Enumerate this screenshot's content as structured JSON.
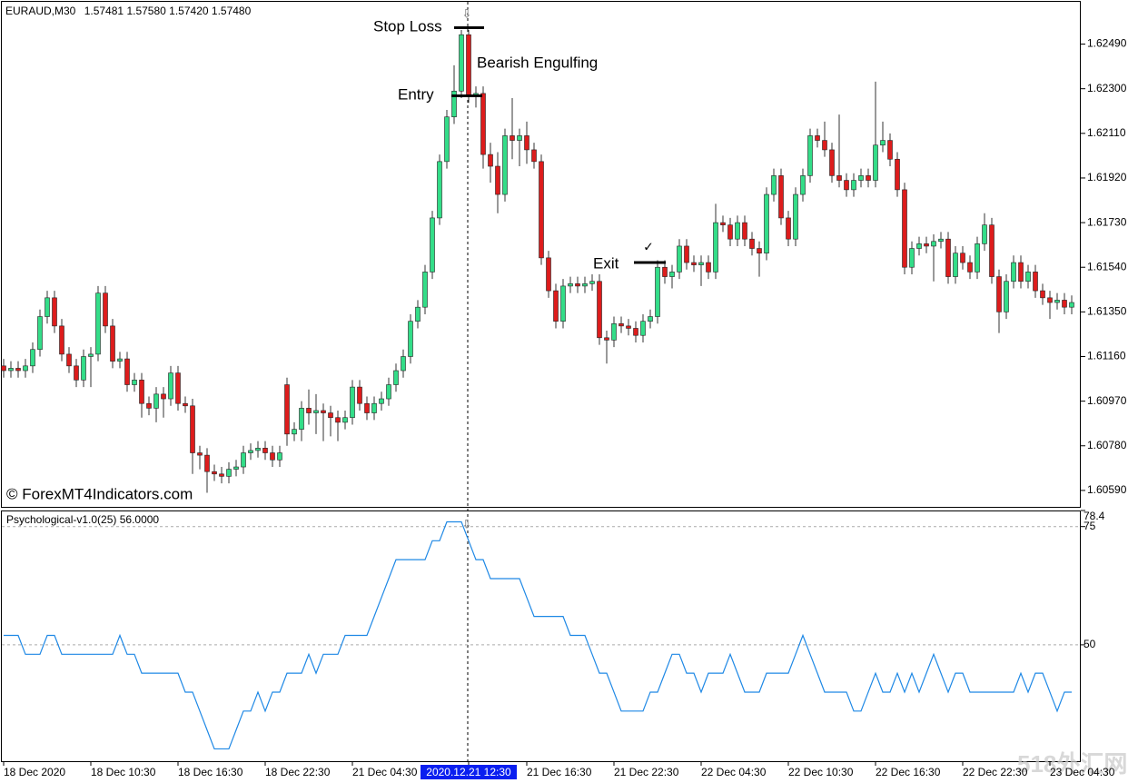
{
  "header": {
    "symbol": "EURAUD,M30",
    "ohlc": [
      "1.57481",
      "1.57580",
      "1.57420",
      "1.57480"
    ]
  },
  "watermarks": [
    "© ForexMT4Indicators.com",
    "518外汇网"
  ],
  "chart_data": [
    {
      "type": "candlestick",
      "categories": [
        "18 Dec 2020",
        null,
        null,
        null,
        null,
        null,
        null,
        null,
        null,
        null,
        null,
        null,
        "18 Dec 10:30",
        null,
        null,
        null,
        null,
        null,
        null,
        null,
        null,
        null,
        null,
        null,
        "18 Dec 16:30",
        null,
        null,
        null,
        null,
        null,
        null,
        null,
        null,
        null,
        null,
        null,
        "18 Dec 22:30",
        null,
        null,
        null,
        null,
        null,
        null,
        null,
        null,
        null,
        null,
        null,
        "21 Dec 04:30",
        null,
        null,
        null,
        null,
        null,
        null,
        null,
        null,
        null,
        null,
        null,
        null,
        null,
        null,
        null,
        "2020.12.21 12:30",
        null,
        null,
        null,
        null,
        null,
        null,
        null,
        "21 Dec 16:30",
        null,
        null,
        null,
        null,
        null,
        null,
        null,
        null,
        null,
        null,
        null,
        "21 Dec 22:30",
        null,
        null,
        null,
        null,
        null,
        null,
        null,
        null,
        null,
        null,
        null,
        "22 Dec 04:30",
        null,
        null,
        null,
        null,
        null,
        null,
        null,
        null,
        null,
        null,
        null,
        "22 Dec 10:30",
        null,
        null,
        null,
        null,
        null,
        null,
        null,
        null,
        null,
        null,
        null,
        "22 Dec 16:30",
        null,
        null,
        null,
        null,
        null,
        null,
        null,
        null,
        null,
        null,
        null,
        "22 Dec 22:30",
        null,
        null,
        null,
        null,
        null,
        null,
        null,
        null,
        null,
        null,
        null,
        "23 Dec 04:30",
        null,
        null,
        null
      ],
      "open": [
        1.6112,
        1.611,
        1.6111,
        1.611,
        1.6112,
        1.6119,
        1.6133,
        1.6141,
        1.6129,
        1.6117,
        1.6112,
        1.6106,
        1.6116,
        1.6117,
        1.6143,
        1.6129,
        1.6114,
        1.6115,
        1.6104,
        1.6106,
        1.6096,
        1.6094,
        1.61,
        1.6098,
        1.6109,
        1.6096,
        1.6095,
        1.6075,
        1.6074,
        1.6067,
        1.6066,
        1.6065,
        1.6068,
        1.6069,
        1.6075,
        1.6076,
        1.6077,
        1.6075,
        1.6072,
        1.6104,
        1.6083,
        1.6085,
        1.6094,
        1.6092,
        1.6093,
        1.6092,
        1.609,
        1.6088,
        1.609,
        1.6103,
        1.6096,
        1.6092,
        1.6096,
        1.6098,
        1.6104,
        1.611,
        1.6116,
        1.6131,
        1.6137,
        1.6152,
        1.6175,
        1.6199,
        1.6218,
        1.6229,
        1.6253,
        1.6227,
        1.6228,
        1.6202,
        1.6197,
        1.6185,
        1.621,
        1.6208,
        1.621,
        1.6204,
        1.6199,
        1.6158,
        1.6144,
        1.6131,
        1.6146,
        1.6147,
        1.6146,
        1.6147,
        1.6148,
        1.6124,
        1.6123,
        1.613,
        1.6129,
        1.6128,
        1.6125,
        1.6131,
        1.6133,
        1.6154,
        1.615,
        1.6152,
        1.6163,
        1.6156,
        1.6155,
        1.6156,
        1.6152,
        1.6173,
        1.6172,
        1.6166,
        1.6173,
        1.6166,
        1.6162,
        1.616,
        1.6185,
        1.6193,
        1.6175,
        1.6166,
        1.6185,
        1.6193,
        1.621,
        1.6208,
        1.6204,
        1.6193,
        1.6191,
        1.6187,
        1.6191,
        1.6193,
        1.6191,
        1.6206,
        1.6208,
        1.62,
        1.6187,
        1.6154,
        1.6162,
        1.6164,
        1.6163,
        1.6165,
        1.6166,
        1.615,
        1.616,
        1.6156,
        1.6152,
        1.6164,
        1.6172,
        1.615,
        1.6135,
        1.6148,
        1.6156,
        1.6148,
        1.6152,
        1.6144,
        1.6141,
        1.6139,
        1.614,
        1.6137
      ],
      "high": [
        1.6115,
        1.6114,
        1.6114,
        1.6115,
        1.6122,
        1.6136,
        1.6144,
        1.6144,
        1.6132,
        1.612,
        1.6115,
        1.6119,
        1.612,
        1.6146,
        1.6146,
        1.6132,
        1.6118,
        1.6118,
        1.6109,
        1.6109,
        1.6099,
        1.6103,
        1.6103,
        1.6112,
        1.6112,
        1.6099,
        1.6098,
        1.6078,
        1.6077,
        1.607,
        1.6069,
        1.6071,
        1.6072,
        1.6078,
        1.6079,
        1.608,
        1.608,
        1.6078,
        1.6078,
        1.6107,
        1.6088,
        1.6097,
        1.6102,
        1.61,
        1.6096,
        1.6095,
        1.6093,
        1.6093,
        1.6106,
        1.6106,
        1.6099,
        1.6099,
        1.6101,
        1.6107,
        1.6113,
        1.6119,
        1.6134,
        1.614,
        1.6155,
        1.6178,
        1.6202,
        1.6221,
        1.624,
        1.6255,
        1.6255,
        1.6231,
        1.6231,
        1.6207,
        1.6203,
        1.6213,
        1.6226,
        1.6213,
        1.6216,
        1.6207,
        1.6202,
        1.6161,
        1.6147,
        1.6149,
        1.615,
        1.615,
        1.615,
        1.6151,
        1.6151,
        1.6127,
        1.6133,
        1.6133,
        1.6132,
        1.6131,
        1.6134,
        1.6136,
        1.6157,
        1.6157,
        1.6155,
        1.6166,
        1.6166,
        1.6159,
        1.6159,
        1.6159,
        1.6181,
        1.6176,
        1.6175,
        1.6176,
        1.6176,
        1.6169,
        1.6165,
        1.6188,
        1.6196,
        1.6196,
        1.6178,
        1.6188,
        1.6196,
        1.6213,
        1.6213,
        1.6216,
        1.6207,
        1.6219,
        1.6194,
        1.6194,
        1.6196,
        1.6196,
        1.6233,
        1.6216,
        1.6211,
        1.6203,
        1.619,
        1.6165,
        1.6167,
        1.6167,
        1.6168,
        1.6169,
        1.6169,
        1.6163,
        1.6163,
        1.6159,
        1.6167,
        1.6177,
        1.6175,
        1.6153,
        1.6151,
        1.6159,
        1.6159,
        1.6155,
        1.6155,
        1.6147,
        1.6144,
        1.6143,
        1.6143,
        1.6142
      ],
      "low": [
        1.6107,
        1.6107,
        1.6107,
        1.6107,
        1.6109,
        1.6116,
        1.613,
        1.6126,
        1.6114,
        1.6109,
        1.6103,
        1.6103,
        1.6103,
        1.6114,
        1.6126,
        1.6111,
        1.6111,
        1.6101,
        1.6101,
        1.609,
        1.6091,
        1.6088,
        1.609,
        1.6095,
        1.6093,
        1.6092,
        1.6066,
        1.6068,
        1.6058,
        1.6063,
        1.6062,
        1.6062,
        1.6065,
        1.6066,
        1.6072,
        1.6073,
        1.6072,
        1.6069,
        1.6069,
        1.6078,
        1.608,
        1.608,
        1.6087,
        1.6083,
        1.608,
        1.6082,
        1.608,
        1.6085,
        1.6087,
        1.6093,
        1.6089,
        1.6089,
        1.6093,
        1.6095,
        1.6101,
        1.6107,
        1.6113,
        1.6128,
        1.6134,
        1.6149,
        1.6172,
        1.6196,
        1.6215,
        1.6226,
        1.6224,
        1.6222,
        1.6196,
        1.619,
        1.6177,
        1.6182,
        1.62,
        1.6197,
        1.6198,
        1.6196,
        1.6155,
        1.6141,
        1.6128,
        1.6128,
        1.6143,
        1.6143,
        1.6143,
        1.6144,
        1.6121,
        1.6113,
        1.612,
        1.6126,
        1.6125,
        1.6122,
        1.6122,
        1.6128,
        1.613,
        1.6147,
        1.6145,
        1.6149,
        1.6153,
        1.6152,
        1.6146,
        1.6149,
        1.6149,
        1.6169,
        1.6163,
        1.6163,
        1.6163,
        1.6159,
        1.615,
        1.6157,
        1.6182,
        1.6172,
        1.6163,
        1.6163,
        1.6182,
        1.619,
        1.6205,
        1.6201,
        1.619,
        1.6188,
        1.6184,
        1.6184,
        1.6188,
        1.6188,
        1.6188,
        1.6203,
        1.6197,
        1.6184,
        1.6151,
        1.6151,
        1.6159,
        1.616,
        1.6148,
        1.6162,
        1.6147,
        1.6147,
        1.6153,
        1.6149,
        1.6149,
        1.6161,
        1.6147,
        1.6126,
        1.6132,
        1.6145,
        1.6145,
        1.6145,
        1.6141,
        1.6138,
        1.6132,
        1.6136,
        1.6134,
        1.6134
      ],
      "close": [
        1.611,
        1.6111,
        1.611,
        1.6112,
        1.6119,
        1.6133,
        1.6141,
        1.6129,
        1.6117,
        1.6112,
        1.6106,
        1.6116,
        1.6117,
        1.6143,
        1.6129,
        1.6114,
        1.6115,
        1.6104,
        1.6106,
        1.6096,
        1.6094,
        1.61,
        1.6098,
        1.6109,
        1.6096,
        1.6095,
        1.6075,
        1.6074,
        1.6067,
        1.6066,
        1.6065,
        1.6068,
        1.6069,
        1.6075,
        1.6076,
        1.6077,
        1.6075,
        1.6072,
        1.6075,
        1.6083,
        1.6085,
        1.6094,
        1.6092,
        1.6093,
        1.6092,
        1.609,
        1.6088,
        1.609,
        1.6103,
        1.6096,
        1.6092,
        1.6096,
        1.6098,
        1.6104,
        1.611,
        1.6116,
        1.6131,
        1.6137,
        1.6152,
        1.6175,
        1.6199,
        1.6218,
        1.6229,
        1.6253,
        1.6227,
        1.6228,
        1.6202,
        1.6197,
        1.6185,
        1.621,
        1.6208,
        1.621,
        1.6204,
        1.6199,
        1.6158,
        1.6144,
        1.6131,
        1.6146,
        1.6147,
        1.6146,
        1.6147,
        1.6148,
        1.6124,
        1.6123,
        1.613,
        1.6129,
        1.6128,
        1.6125,
        1.6131,
        1.6133,
        1.6154,
        1.615,
        1.6152,
        1.6163,
        1.6156,
        1.6155,
        1.6156,
        1.6152,
        1.6173,
        1.6172,
        1.6166,
        1.6173,
        1.6166,
        1.6162,
        1.616,
        1.6185,
        1.6193,
        1.6175,
        1.6166,
        1.6185,
        1.6193,
        1.621,
        1.6208,
        1.6204,
        1.6193,
        1.6191,
        1.6187,
        1.6191,
        1.6193,
        1.6191,
        1.6206,
        1.6208,
        1.62,
        1.6187,
        1.6154,
        1.6162,
        1.6164,
        1.6163,
        1.6165,
        1.6166,
        1.615,
        1.616,
        1.6156,
        1.6152,
        1.6164,
        1.6172,
        1.615,
        1.6135,
        1.6148,
        1.6156,
        1.6148,
        1.6152,
        1.6144,
        1.6141,
        1.6139,
        1.614,
        1.6137,
        1.6139
      ],
      "up_color": "#33dd88",
      "down_color": "#dd1c1c",
      "ylim": [
        1.6052,
        1.6267
      ],
      "yticks": [
        {
          "value": 1.6249,
          "label": "1.62490"
        },
        {
          "value": 1.623,
          "label": "1.62300"
        },
        {
          "value": 1.6211,
          "label": "1.62110"
        },
        {
          "value": 1.6192,
          "label": "1.61920"
        },
        {
          "value": 1.6173,
          "label": "1.61730"
        },
        {
          "value": 1.6154,
          "label": "1.61540"
        },
        {
          "value": 1.6135,
          "label": "1.61350"
        },
        {
          "value": 1.6116,
          "label": "1.61160"
        },
        {
          "value": 1.6097,
          "label": "1.60970"
        },
        {
          "value": 1.6078,
          "label": "1.60780"
        },
        {
          "value": 1.6059,
          "label": "1.60590"
        }
      ],
      "annotations": [
        {
          "text": "Stop Loss",
          "level": 1.6256
        },
        {
          "text": "Entry",
          "level": 1.6227
        },
        {
          "text": "Bearish Engulfing"
        },
        {
          "text": "Exit",
          "level": 1.6156
        }
      ]
    },
    {
      "type": "line",
      "title": "Psychological-v1.0(25) 56.0000",
      "color": "#1e88e5",
      "values": [
        52,
        52,
        52,
        48,
        48,
        48,
        52,
        52,
        48,
        48,
        48,
        48,
        48,
        48,
        48,
        48,
        52,
        48,
        48,
        44,
        44,
        44,
        44,
        44,
        44,
        40,
        40,
        36,
        32,
        28,
        28,
        28,
        32,
        36,
        36,
        40,
        36,
        40,
        40,
        44,
        44,
        44,
        48,
        44,
        48,
        48,
        48,
        52,
        52,
        52,
        52,
        56,
        60,
        64,
        68,
        68,
        68,
        68,
        68,
        72,
        72,
        76,
        76,
        76,
        72,
        68,
        68,
        64,
        64,
        64,
        64,
        64,
        60,
        56,
        56,
        56,
        56,
        56,
        52,
        52,
        52,
        48,
        44,
        44,
        40,
        36,
        36,
        36,
        36,
        40,
        40,
        44,
        48,
        48,
        44,
        44,
        40,
        44,
        44,
        44,
        48,
        44,
        40,
        40,
        40,
        44,
        44,
        44,
        44,
        48,
        52,
        48,
        44,
        40,
        40,
        40,
        40,
        36,
        36,
        40,
        44,
        40,
        40,
        44,
        40,
        44,
        40,
        44,
        48,
        44,
        40,
        44,
        44,
        40,
        40,
        40,
        40,
        40,
        40,
        40,
        44,
        40,
        44,
        44,
        40,
        36,
        40,
        40
      ],
      "ylim": [
        25.4,
        78.4
      ],
      "yticks": [
        78.4,
        75,
        50
      ],
      "levels": [
        75,
        50
      ]
    }
  ]
}
